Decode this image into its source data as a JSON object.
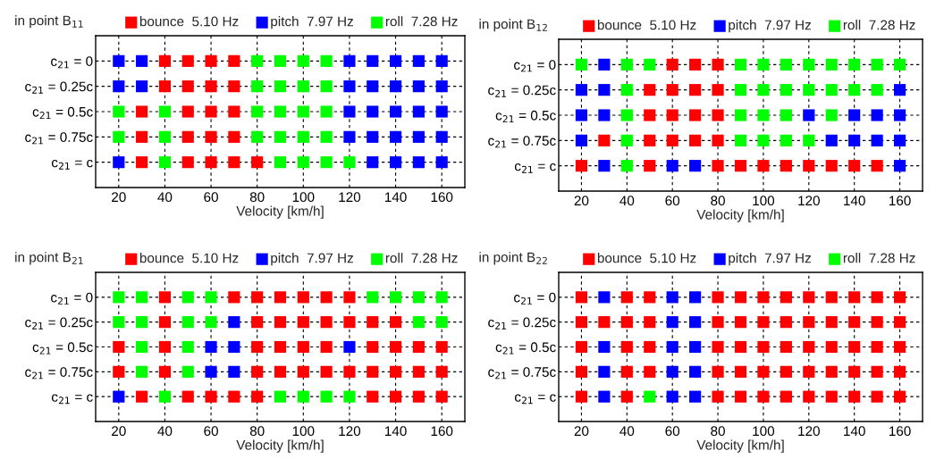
{
  "chart_data": [
    {
      "type": "scatter",
      "orientation": "horizontal",
      "title": "in point B$_{11}$",
      "xlabel": "Velocity [km/h]",
      "xlim": [
        10,
        170
      ],
      "xticks": [
        20,
        40,
        60,
        80,
        100,
        120,
        140,
        160
      ],
      "categories": [
        "c$_{21}$ = 0",
        "c$_{21}$ = 0.25c",
        "c$_{21}$ = 0.5c",
        "c$_{21}$ = 0.75c",
        "c$_{21}$ = c"
      ],
      "grid": true,
      "legend": "top",
      "marker": "square",
      "series": [
        {
          "name": "bounce  5.10 Hz",
          "color": "#ff0000",
          "values": [
            null,
            null,
            null,
            null,
            null
          ]
        },
        {
          "name": "pitch  7.97 Hz",
          "color": "#0000ff",
          "values": [
            null,
            null,
            null,
            null,
            null
          ]
        },
        {
          "name": "roll  7.28 Hz",
          "color": "#00ff00",
          "values": [
            null,
            null,
            null,
            null,
            null
          ]
        },
        {
          "values": [
            20,
            20,
            20,
            20,
            20
          ],
          "colors": [
            "#0000ff",
            "#0000ff",
            "#00ff00",
            "#00ff00",
            "#0000ff"
          ]
        },
        {
          "values": [
            30,
            30,
            30,
            30,
            30
          ],
          "colors": [
            "#0000ff",
            "#0000ff",
            "#ff0000",
            "#ff0000",
            "#ff0000"
          ]
        },
        {
          "values": [
            40,
            40,
            40,
            40,
            40
          ],
          "colors": [
            "#ff0000",
            "#ff0000",
            "#00ff00",
            "#00ff00",
            "#00ff00"
          ]
        },
        {
          "values": [
            50,
            50,
            50,
            50,
            50
          ],
          "colors": [
            "#ff0000",
            "#ff0000",
            "#ff0000",
            "#ff0000",
            "#ff0000"
          ]
        },
        {
          "values": [
            60,
            60,
            60,
            60,
            60
          ],
          "colors": [
            "#ff0000",
            "#ff0000",
            "#ff0000",
            "#ff0000",
            "#ff0000"
          ]
        },
        {
          "values": [
            70,
            70,
            70,
            70,
            70
          ],
          "colors": [
            "#ff0000",
            "#ff0000",
            "#ff0000",
            "#ff0000",
            "#ff0000"
          ]
        },
        {
          "values": [
            80,
            80,
            80,
            80,
            80
          ],
          "colors": [
            "#00ff00",
            "#00ff00",
            "#00ff00",
            "#00ff00",
            "#ff0000"
          ]
        },
        {
          "values": [
            90,
            90,
            90,
            90,
            90
          ],
          "colors": [
            "#00ff00",
            "#00ff00",
            "#00ff00",
            "#00ff00",
            "#00ff00"
          ]
        },
        {
          "values": [
            100,
            100,
            100,
            100,
            100
          ],
          "colors": [
            "#00ff00",
            "#00ff00",
            "#00ff00",
            "#00ff00",
            "#00ff00"
          ]
        },
        {
          "values": [
            110,
            110,
            110,
            110,
            110
          ],
          "colors": [
            "#00ff00",
            "#00ff00",
            "#00ff00",
            "#00ff00",
            "#00ff00"
          ]
        },
        {
          "values": [
            120,
            120,
            120,
            120,
            120
          ],
          "colors": [
            "#0000ff",
            "#0000ff",
            "#0000ff",
            "#0000ff",
            "#00ff00"
          ]
        },
        {
          "values": [
            130,
            130,
            130,
            130,
            130
          ],
          "colors": [
            "#0000ff",
            "#0000ff",
            "#0000ff",
            "#0000ff",
            "#0000ff"
          ]
        },
        {
          "values": [
            140,
            140,
            140,
            140,
            140
          ],
          "colors": [
            "#0000ff",
            "#0000ff",
            "#0000ff",
            "#0000ff",
            "#0000ff"
          ]
        },
        {
          "values": [
            150,
            150,
            150,
            150,
            150
          ],
          "colors": [
            "#0000ff",
            "#0000ff",
            "#0000ff",
            "#0000ff",
            "#0000ff"
          ]
        },
        {
          "values": [
            160,
            160,
            160,
            160,
            160
          ],
          "colors": [
            "#0000ff",
            "#0000ff",
            "#0000ff",
            "#0000ff",
            "#0000ff"
          ]
        }
      ]
    },
    {
      "type": "scatter",
      "orientation": "horizontal",
      "title": "in point B$_{12}$",
      "xlabel": "Velocity [km/h]",
      "xlim": [
        10,
        170
      ],
      "xticks": [
        20,
        40,
        60,
        80,
        100,
        120,
        140,
        160
      ],
      "categories": [
        "c$_{21}$ = 0",
        "c$_{21}$ = 0.25c",
        "c$_{21}$ = 0.5c",
        "c$_{21}$ = 0.75c",
        "c$_{21}$ = c"
      ],
      "grid": true,
      "legend": "top",
      "marker": "square",
      "series": [
        {
          "name": "bounce  5.10 Hz",
          "color": "#ff0000",
          "values": [
            null,
            null,
            null,
            null,
            null
          ]
        },
        {
          "name": "pitch  7.97 Hz",
          "color": "#0000ff",
          "values": [
            null,
            null,
            null,
            null,
            null
          ]
        },
        {
          "name": "roll  7.28 Hz",
          "color": "#00ff00",
          "values": [
            null,
            null,
            null,
            null,
            null
          ]
        },
        {
          "values": [
            20,
            20,
            20,
            20,
            20
          ],
          "colors": [
            "#00ff00",
            "#0000ff",
            "#0000ff",
            "#0000ff",
            "#ff0000"
          ]
        },
        {
          "values": [
            30,
            30,
            30,
            30,
            30
          ],
          "colors": [
            "#0000ff",
            "#0000ff",
            "#0000ff",
            "#ff0000",
            "#0000ff"
          ]
        },
        {
          "values": [
            40,
            40,
            40,
            40,
            40
          ],
          "colors": [
            "#00ff00",
            "#00ff00",
            "#00ff00",
            "#00ff00",
            "#00ff00"
          ]
        },
        {
          "values": [
            50,
            50,
            50,
            50,
            50
          ],
          "colors": [
            "#00ff00",
            "#ff0000",
            "#ff0000",
            "#ff0000",
            "#ff0000"
          ]
        },
        {
          "values": [
            60,
            60,
            60,
            60,
            60
          ],
          "colors": [
            "#ff0000",
            "#ff0000",
            "#ff0000",
            "#ff0000",
            "#0000ff"
          ]
        },
        {
          "values": [
            70,
            70,
            70,
            70,
            70
          ],
          "colors": [
            "#ff0000",
            "#ff0000",
            "#ff0000",
            "#ff0000",
            "#0000ff"
          ]
        },
        {
          "values": [
            80,
            80,
            80,
            80,
            80
          ],
          "colors": [
            "#ff0000",
            "#ff0000",
            "#ff0000",
            "#ff0000",
            "#ff0000"
          ]
        },
        {
          "values": [
            90,
            90,
            90,
            90,
            90
          ],
          "colors": [
            "#00ff00",
            "#00ff00",
            "#00ff00",
            "#00ff00",
            "#ff0000"
          ]
        },
        {
          "values": [
            100,
            100,
            100,
            100,
            100
          ],
          "colors": [
            "#00ff00",
            "#00ff00",
            "#00ff00",
            "#00ff00",
            "#ff0000"
          ]
        },
        {
          "values": [
            110,
            110,
            110,
            110,
            110
          ],
          "colors": [
            "#00ff00",
            "#00ff00",
            "#00ff00",
            "#00ff00",
            "#ff0000"
          ]
        },
        {
          "values": [
            120,
            120,
            120,
            120,
            120
          ],
          "colors": [
            "#00ff00",
            "#00ff00",
            "#0000ff",
            "#00ff00",
            "#ff0000"
          ]
        },
        {
          "values": [
            130,
            130,
            130,
            130,
            130
          ],
          "colors": [
            "#00ff00",
            "#00ff00",
            "#00ff00",
            "#0000ff",
            "#ff0000"
          ]
        },
        {
          "values": [
            140,
            140,
            140,
            140,
            140
          ],
          "colors": [
            "#00ff00",
            "#00ff00",
            "#0000ff",
            "#0000ff",
            "#ff0000"
          ]
        },
        {
          "values": [
            150,
            150,
            150,
            150,
            150
          ],
          "colors": [
            "#00ff00",
            "#00ff00",
            "#0000ff",
            "#0000ff",
            "#ff0000"
          ]
        },
        {
          "values": [
            160,
            160,
            160,
            160,
            160
          ],
          "colors": [
            "#00ff00",
            "#0000ff",
            "#0000ff",
            "#0000ff",
            "#0000ff"
          ]
        }
      ]
    },
    {
      "type": "scatter",
      "orientation": "horizontal",
      "title": "in point B$_{21}$",
      "xlabel": "Velocity [km/h]",
      "xlim": [
        10,
        170
      ],
      "xticks": [
        20,
        40,
        60,
        80,
        100,
        120,
        140,
        160
      ],
      "categories": [
        "c$_{21}$ = 0",
        "c$_{21}$ = 0.25c",
        "c$_{21}$ = 0.5c",
        "c$_{21}$ = 0.75c",
        "c$_{21}$ = c"
      ],
      "grid": true,
      "legend": "top",
      "marker": "square",
      "series": [
        {
          "name": "bounce  5.10 Hz",
          "color": "#ff0000",
          "values": [
            null,
            null,
            null,
            null,
            null
          ]
        },
        {
          "name": "pitch  7.97 Hz",
          "color": "#0000ff",
          "values": [
            null,
            null,
            null,
            null,
            null
          ]
        },
        {
          "name": "roll  7.28 Hz",
          "color": "#00ff00",
          "values": [
            null,
            null,
            null,
            null,
            null
          ]
        },
        {
          "values": [
            20,
            20,
            20,
            20,
            20
          ],
          "colors": [
            "#00ff00",
            "#00ff00",
            "#ff0000",
            "#ff0000",
            "#0000ff"
          ]
        },
        {
          "values": [
            30,
            30,
            30,
            30,
            30
          ],
          "colors": [
            "#00ff00",
            "#00ff00",
            "#00ff00",
            "#00ff00",
            "#ff0000"
          ]
        },
        {
          "values": [
            40,
            40,
            40,
            40,
            40
          ],
          "colors": [
            "#ff0000",
            "#ff0000",
            "#ff0000",
            "#ff0000",
            "#00ff00"
          ]
        },
        {
          "values": [
            50,
            50,
            50,
            50,
            50
          ],
          "colors": [
            "#00ff00",
            "#00ff00",
            "#00ff00",
            "#00ff00",
            "#ff0000"
          ]
        },
        {
          "values": [
            60,
            60,
            60,
            60,
            60
          ],
          "colors": [
            "#00ff00",
            "#00ff00",
            "#0000ff",
            "#0000ff",
            "#ff0000"
          ]
        },
        {
          "values": [
            70,
            70,
            70,
            70,
            70
          ],
          "colors": [
            "#ff0000",
            "#0000ff",
            "#0000ff",
            "#0000ff",
            "#ff0000"
          ]
        },
        {
          "values": [
            80,
            80,
            80,
            80,
            80
          ],
          "colors": [
            "#ff0000",
            "#ff0000",
            "#ff0000",
            "#ff0000",
            "#ff0000"
          ]
        },
        {
          "values": [
            90,
            90,
            90,
            90,
            90
          ],
          "colors": [
            "#ff0000",
            "#ff0000",
            "#ff0000",
            "#ff0000",
            "#00ff00"
          ]
        },
        {
          "values": [
            100,
            100,
            100,
            100,
            100
          ],
          "colors": [
            "#ff0000",
            "#ff0000",
            "#ff0000",
            "#ff0000",
            "#00ff00"
          ]
        },
        {
          "values": [
            110,
            110,
            110,
            110,
            110
          ],
          "colors": [
            "#ff0000",
            "#ff0000",
            "#ff0000",
            "#ff0000",
            "#00ff00"
          ]
        },
        {
          "values": [
            120,
            120,
            120,
            120,
            120
          ],
          "colors": [
            "#ff0000",
            "#ff0000",
            "#0000ff",
            "#ff0000",
            "#00ff00"
          ]
        },
        {
          "values": [
            130,
            130,
            130,
            130,
            130
          ],
          "colors": [
            "#00ff00",
            "#ff0000",
            "#ff0000",
            "#ff0000",
            "#ff0000"
          ]
        },
        {
          "values": [
            140,
            140,
            140,
            140,
            140
          ],
          "colors": [
            "#00ff00",
            "#ff0000",
            "#ff0000",
            "#ff0000",
            "#ff0000"
          ]
        },
        {
          "values": [
            150,
            150,
            150,
            150,
            150
          ],
          "colors": [
            "#00ff00",
            "#00ff00",
            "#ff0000",
            "#ff0000",
            "#ff0000"
          ]
        },
        {
          "values": [
            160,
            160,
            160,
            160,
            160
          ],
          "colors": [
            "#00ff00",
            "#00ff00",
            "#ff0000",
            "#ff0000",
            "#ff0000"
          ]
        }
      ]
    },
    {
      "type": "scatter",
      "orientation": "horizontal",
      "title": "in point B$_{22}$",
      "xlabel": "Velocity [km/h]",
      "xlim": [
        10,
        170
      ],
      "xticks": [
        20,
        40,
        60,
        80,
        100,
        120,
        140,
        160
      ],
      "categories": [
        "c$_{21}$ = 0",
        "c$_{21}$ = 0.25c",
        "c$_{21}$ = 0.5c",
        "c$_{21}$ = 0.75c",
        "c$_{21}$ = c"
      ],
      "grid": true,
      "legend": "top",
      "marker": "square",
      "series": [
        {
          "name": "bounce  5.10 Hz",
          "color": "#ff0000",
          "values": [
            null,
            null,
            null,
            null,
            null
          ]
        },
        {
          "name": "pitch  7.97 Hz",
          "color": "#0000ff",
          "values": [
            null,
            null,
            null,
            null,
            null
          ]
        },
        {
          "name": "roll  7.28 Hz",
          "color": "#00ff00",
          "values": [
            null,
            null,
            null,
            null,
            null
          ]
        },
        {
          "values": [
            20,
            20,
            20,
            20,
            20
          ],
          "colors": [
            "#ff0000",
            "#ff0000",
            "#ff0000",
            "#ff0000",
            "#ff0000"
          ]
        },
        {
          "values": [
            30,
            30,
            30,
            30,
            30
          ],
          "colors": [
            "#0000ff",
            "#ff0000",
            "#0000ff",
            "#0000ff",
            "#0000ff"
          ]
        },
        {
          "values": [
            40,
            40,
            40,
            40,
            40
          ],
          "colors": [
            "#ff0000",
            "#ff0000",
            "#ff0000",
            "#ff0000",
            "#ff0000"
          ]
        },
        {
          "values": [
            50,
            50,
            50,
            50,
            50
          ],
          "colors": [
            "#ff0000",
            "#ff0000",
            "#ff0000",
            "#ff0000",
            "#00ff00"
          ]
        },
        {
          "values": [
            60,
            60,
            60,
            60,
            60
          ],
          "colors": [
            "#0000ff",
            "#0000ff",
            "#0000ff",
            "#0000ff",
            "#0000ff"
          ]
        },
        {
          "values": [
            70,
            70,
            70,
            70,
            70
          ],
          "colors": [
            "#0000ff",
            "#0000ff",
            "#0000ff",
            "#0000ff",
            "#0000ff"
          ]
        },
        {
          "values": [
            80,
            80,
            80,
            80,
            80
          ],
          "colors": [
            "#ff0000",
            "#ff0000",
            "#ff0000",
            "#ff0000",
            "#ff0000"
          ]
        },
        {
          "values": [
            90,
            90,
            90,
            90,
            90
          ],
          "colors": [
            "#ff0000",
            "#ff0000",
            "#ff0000",
            "#ff0000",
            "#ff0000"
          ]
        },
        {
          "values": [
            100,
            100,
            100,
            100,
            100
          ],
          "colors": [
            "#ff0000",
            "#ff0000",
            "#ff0000",
            "#ff0000",
            "#ff0000"
          ]
        },
        {
          "values": [
            110,
            110,
            110,
            110,
            110
          ],
          "colors": [
            "#ff0000",
            "#ff0000",
            "#ff0000",
            "#ff0000",
            "#ff0000"
          ]
        },
        {
          "values": [
            120,
            120,
            120,
            120,
            120
          ],
          "colors": [
            "#ff0000",
            "#ff0000",
            "#ff0000",
            "#ff0000",
            "#ff0000"
          ]
        },
        {
          "values": [
            130,
            130,
            130,
            130,
            130
          ],
          "colors": [
            "#ff0000",
            "#ff0000",
            "#ff0000",
            "#ff0000",
            "#ff0000"
          ]
        },
        {
          "values": [
            140,
            140,
            140,
            140,
            140
          ],
          "colors": [
            "#ff0000",
            "#ff0000",
            "#ff0000",
            "#ff0000",
            "#ff0000"
          ]
        },
        {
          "values": [
            150,
            150,
            150,
            150,
            150
          ],
          "colors": [
            "#ff0000",
            "#ff0000",
            "#ff0000",
            "#ff0000",
            "#ff0000"
          ]
        },
        {
          "values": [
            160,
            160,
            160,
            160,
            160
          ],
          "colors": [
            "#ff0000",
            "#ff0000",
            "#ff0000",
            "#ff0000",
            "#ff0000"
          ]
        }
      ]
    }
  ]
}
